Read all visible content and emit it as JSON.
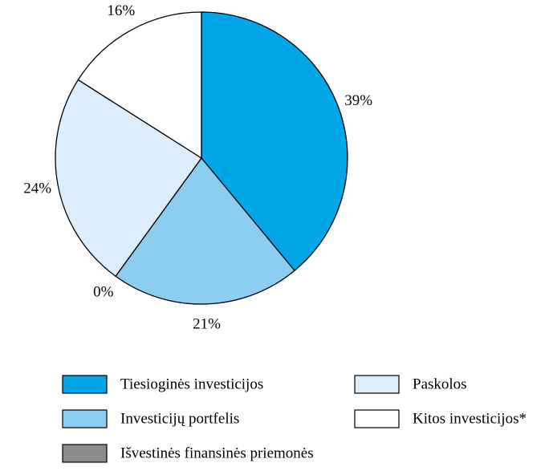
{
  "chart_data": {
    "type": "pie",
    "categories": [
      "Tiesioginės investicijos",
      "Investicijų portfelis",
      "Išvestinės finansinės priemonės",
      "Paskolos",
      "Kitos investicijos*"
    ],
    "values": [
      39,
      21,
      0,
      24,
      16
    ],
    "value_labels": [
      "39%",
      "21%",
      "0%",
      "24%",
      "16%"
    ],
    "colors": [
      "#00a6e8",
      "#8ccdf2",
      "#8c8c8c",
      "#dcedfb",
      "#ffffff"
    ]
  }
}
